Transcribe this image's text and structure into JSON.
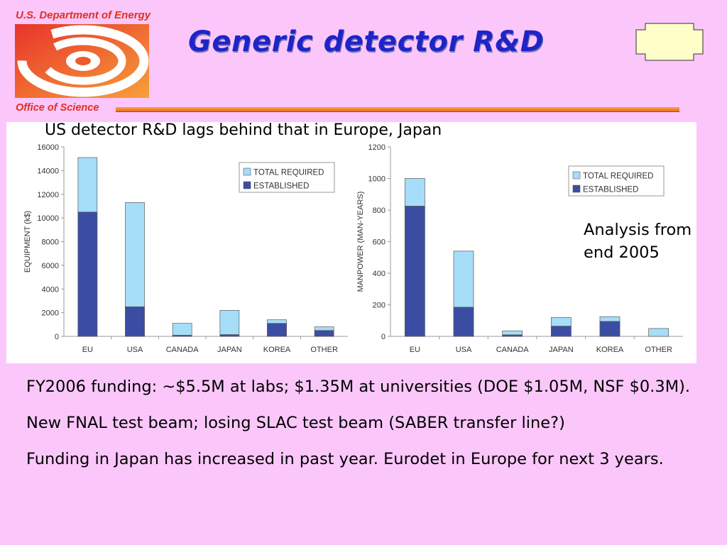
{
  "header": {
    "department": "U.S. Department of Energy",
    "office": "Office of Science",
    "title": "Generic detector R&D"
  },
  "subtitle": "US detector R&D lags behind that in Europe, Japan",
  "annotation": {
    "line1": "Analysis from",
    "line2": "end 2005"
  },
  "colors": {
    "total_required": "#a6ddf8",
    "established": "#3b4da3",
    "title": "#1f24c8",
    "background": "#fbc7fb"
  },
  "chart_data": [
    {
      "type": "bar",
      "stacking": "overlay",
      "ylabel": "EQUIPMENT (k$)",
      "categories": [
        "EU",
        "USA",
        "CANADA",
        "JAPAN",
        "KOREA",
        "OTHER"
      ],
      "series": [
        {
          "name": "TOTAL REQUIRED",
          "values": [
            15100,
            11300,
            1100,
            2200,
            1400,
            800
          ]
        },
        {
          "name": "ESTABLISHED",
          "values": [
            10500,
            2500,
            100,
            150,
            1100,
            500
          ]
        }
      ],
      "ylim": [
        0,
        16000
      ],
      "yticks": [
        0,
        2000,
        4000,
        6000,
        8000,
        10000,
        12000,
        14000,
        16000
      ],
      "legend": "top-right",
      "grid": false
    },
    {
      "type": "bar",
      "stacking": "overlay",
      "ylabel": "MANPOWER (MAN-YEARS)",
      "categories": [
        "EU",
        "USA",
        "CANADA",
        "JAPAN",
        "KOREA",
        "OTHER"
      ],
      "series": [
        {
          "name": "TOTAL REQUIRED",
          "values": [
            1000,
            540,
            35,
            120,
            125,
            50
          ]
        },
        {
          "name": "ESTABLISHED",
          "values": [
            825,
            185,
            10,
            65,
            95,
            0
          ]
        }
      ],
      "ylim": [
        0,
        1200
      ],
      "yticks": [
        0,
        200,
        400,
        600,
        800,
        1000,
        1200
      ],
      "legend": "top-right",
      "grid": false
    }
  ],
  "bullets": [
    "FY2006 funding:  ~$5.5M at labs; $1.35M at universities (DOE $1.05M, NSF $0.3M).",
    "New FNAL test beam; losing SLAC test beam (SABER transfer line?)",
    "Funding in Japan has increased in past year.  Eurodet in Europe for next 3 years."
  ]
}
